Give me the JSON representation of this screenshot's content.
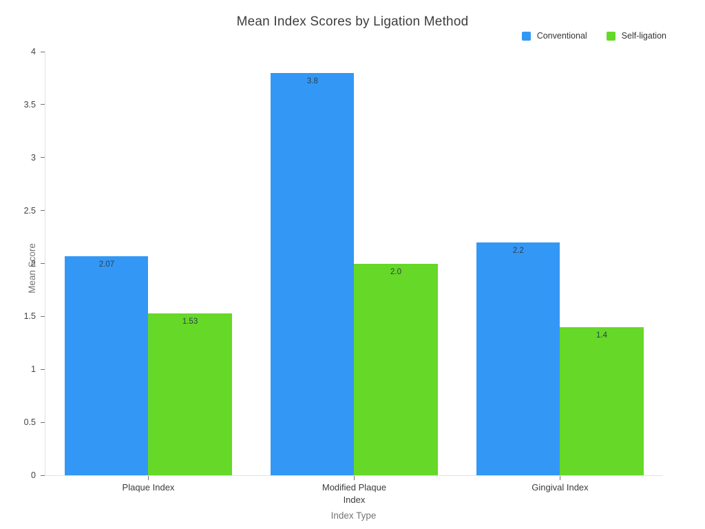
{
  "chart_data": {
    "type": "bar",
    "title": "Mean Index Scores by Ligation Method",
    "xlabel": "Index Type",
    "ylabel": "Mean Score",
    "categories": [
      "Plaque Index",
      "Modified Plaque\nIndex",
      "Gingival Index"
    ],
    "series": [
      {
        "name": "Conventional",
        "color": "#3398f5",
        "values": [
          2.07,
          3.8,
          2.2
        ],
        "value_labels": [
          "2.07",
          "3.8",
          "2.2"
        ]
      },
      {
        "name": "Self-ligation",
        "color": "#66d828",
        "values": [
          1.53,
          2.0,
          1.4
        ],
        "value_labels": [
          "1.53",
          "2.0",
          "1.4"
        ]
      }
    ],
    "ylim": [
      0,
      4
    ],
    "yticks": [
      {
        "v": 0,
        "label": "0"
      },
      {
        "v": 0.5,
        "label": "0.5"
      },
      {
        "v": 1,
        "label": "1"
      },
      {
        "v": 1.5,
        "label": "1.5"
      },
      {
        "v": 2,
        "label": "2"
      },
      {
        "v": 2.5,
        "label": "2.5"
      },
      {
        "v": 3,
        "label": "3"
      },
      {
        "v": 3.5,
        "label": "3.5"
      },
      {
        "v": 4,
        "label": "4"
      }
    ],
    "grid": false,
    "legend_position": "top-right",
    "value_labels_inside_bars": true
  }
}
